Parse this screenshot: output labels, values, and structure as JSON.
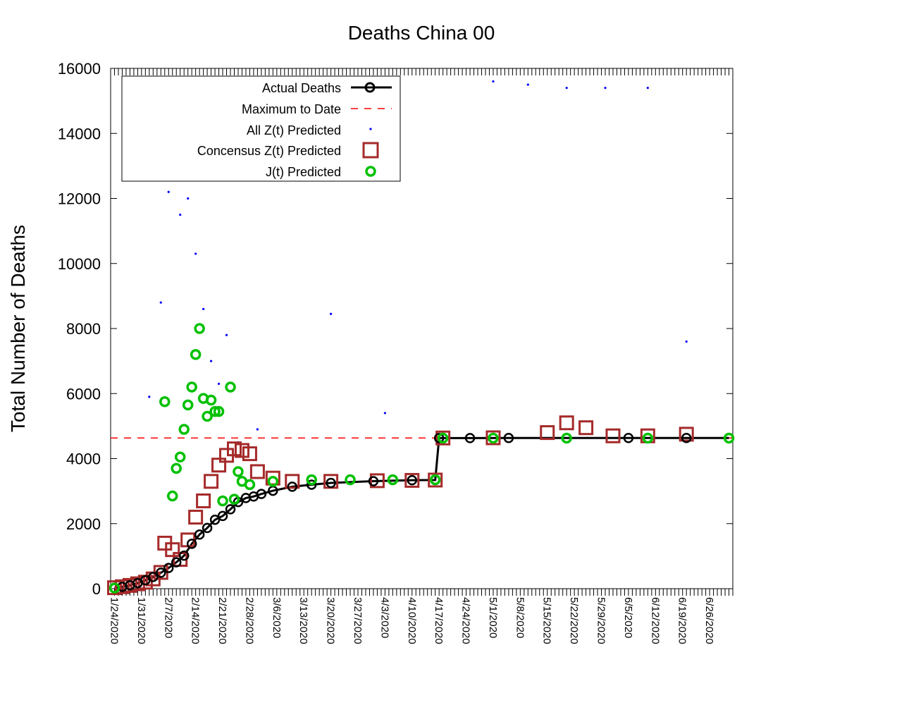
{
  "chart_data": {
    "type": "scatter",
    "title": "Deaths China 00",
    "xlabel": "",
    "ylabel": "Total Number of Deaths",
    "ylim": [
      0,
      16000
    ],
    "xlim": [
      "1/23/2020",
      "7/2/2020"
    ],
    "yticks": [
      0,
      2000,
      4000,
      6000,
      8000,
      10000,
      12000,
      14000,
      16000
    ],
    "xtick_labels": [
      "1/24/2020",
      "1/31/2020",
      "2/7/2020",
      "2/14/2020",
      "2/21/2020",
      "2/28/2020",
      "3/6/2020",
      "3/13/2020",
      "3/20/2020",
      "3/27/2020",
      "4/3/2020",
      "4/10/2020",
      "4/17/2020",
      "4/24/2020",
      "5/1/2020",
      "5/8/2020",
      "5/15/2020",
      "5/22/2020",
      "5/29/2020",
      "6/5/2020",
      "6/12/2020",
      "6/19/2020",
      "6/26/2020"
    ],
    "grid": false,
    "legend_position": "top-left",
    "legend": [
      "Actual Deaths",
      "Maximum to Date",
      "All Z(t) Predicted",
      "Concensus Z(t) Predicted",
      "J(t) Predicted"
    ],
    "colors": {
      "actual": "#000000",
      "max": "#ff0000",
      "all_z": "#0000ff",
      "consensus": "#a52a2a",
      "j": "#00c000"
    },
    "series": [
      {
        "name": "Actual Deaths",
        "kind": "line-with-circles",
        "x": [
          "1/24/2020",
          "1/26/2020",
          "1/28/2020",
          "1/30/2020",
          "2/1/2020",
          "2/3/2020",
          "2/5/2020",
          "2/7/2020",
          "2/9/2020",
          "2/11/2020",
          "2/13/2020",
          "2/15/2020",
          "2/17/2020",
          "2/19/2020",
          "2/21/2020",
          "2/23/2020",
          "2/25/2020",
          "2/27/2020",
          "2/29/2020",
          "3/2/2020",
          "3/5/2020",
          "3/10/2020",
          "3/15/2020",
          "3/20/2020",
          "3/31/2020",
          "4/10/2020",
          "4/16/2020",
          "4/17/2020",
          "4/25/2020",
          "5/5/2020",
          "5/20/2020",
          "6/5/2020",
          "6/20/2020",
          "7/1/2020"
        ],
        "y": [
          25,
          56,
          106,
          170,
          259,
          361,
          490,
          636,
          811,
          1016,
          1380,
          1665,
          1868,
          2118,
          2236,
          2442,
          2663,
          2788,
          2835,
          2912,
          3012,
          3136,
          3199,
          3253,
          3305,
          3336,
          3342,
          4632,
          4632,
          4633,
          4634,
          4634,
          4634,
          4634
        ]
      },
      {
        "name": "Maximum to Date",
        "kind": "dashed-line",
        "y": 4634
      },
      {
        "name": "Concensus Z(t) Predicted",
        "kind": "squares",
        "x": [
          "1/24/2020",
          "1/26/2020",
          "1/28/2020",
          "1/30/2020",
          "2/1/2020",
          "2/3/2020",
          "2/5/2020",
          "2/6/2020",
          "2/8/2020",
          "2/10/2020",
          "2/12/2020",
          "2/14/2020",
          "2/16/2020",
          "2/18/2020",
          "2/20/2020",
          "2/22/2020",
          "2/24/2020",
          "2/26/2020",
          "2/28/2020",
          "3/1/2020",
          "3/5/2020",
          "3/10/2020",
          "3/20/2020",
          "4/1/2020",
          "4/10/2020",
          "4/16/2020",
          "4/18/2020",
          "5/1/2020",
          "5/15/2020",
          "5/20/2020",
          "5/25/2020",
          "6/1/2020",
          "6/10/2020",
          "6/20/2020"
        ],
        "y": [
          30,
          60,
          100,
          150,
          200,
          300,
          500,
          1400,
          1200,
          900,
          1500,
          2200,
          2700,
          3300,
          3800,
          4100,
          4300,
          4250,
          4150,
          3600,
          3400,
          3300,
          3300,
          3320,
          3330,
          3340,
          4634,
          4640,
          4800,
          5100,
          4950,
          4700,
          4700,
          4750
        ]
      },
      {
        "name": "J(t) Predicted",
        "kind": "circles",
        "x": [
          "1/24/2020",
          "2/6/2020",
          "2/8/2020",
          "2/9/2020",
          "2/10/2020",
          "2/11/2020",
          "2/12/2020",
          "2/13/2020",
          "2/14/2020",
          "2/15/2020",
          "2/16/2020",
          "2/17/2020",
          "2/18/2020",
          "2/19/2020",
          "2/20/2020",
          "2/21/2020",
          "2/23/2020",
          "2/24/2020",
          "2/25/2020",
          "2/26/2020",
          "2/28/2020",
          "3/5/2020",
          "3/15/2020",
          "3/25/2020",
          "4/5/2020",
          "4/16/2020",
          "4/18/2020",
          "5/1/2020",
          "5/20/2020",
          "6/10/2020",
          "7/1/2020"
        ],
        "y": [
          20,
          5750,
          2850,
          3700,
          4050,
          4900,
          5650,
          6200,
          7200,
          8000,
          5850,
          5300,
          5800,
          5450,
          5450,
          2700,
          6200,
          2750,
          3600,
          3300,
          3200,
          3300,
          3350,
          3350,
          3350,
          3350,
          4630,
          4630,
          4630,
          4630,
          4630
        ]
      },
      {
        "name": "All Z(t) Predicted",
        "kind": "dots",
        "note": "dense cloud of small points",
        "x": [
          "2/2/2020",
          "2/5/2020",
          "2/7/2020",
          "2/10/2020",
          "2/12/2020",
          "2/14/2020",
          "2/16/2020",
          "2/18/2020",
          "2/20/2020",
          "2/22/2020",
          "2/25/2020",
          "3/1/2020",
          "3/20/2020",
          "4/3/2020",
          "5/1/2020",
          "5/10/2020",
          "5/20/2020",
          "5/30/2020",
          "6/10/2020",
          "6/20/2020"
        ],
        "y": [
          5900,
          8800,
          12200,
          11500,
          12000,
          10300,
          8600,
          7000,
          6300,
          7800,
          4500,
          4900,
          8450,
          5400,
          15600,
          15500,
          15400,
          15400,
          15400,
          7600
        ]
      }
    ]
  }
}
